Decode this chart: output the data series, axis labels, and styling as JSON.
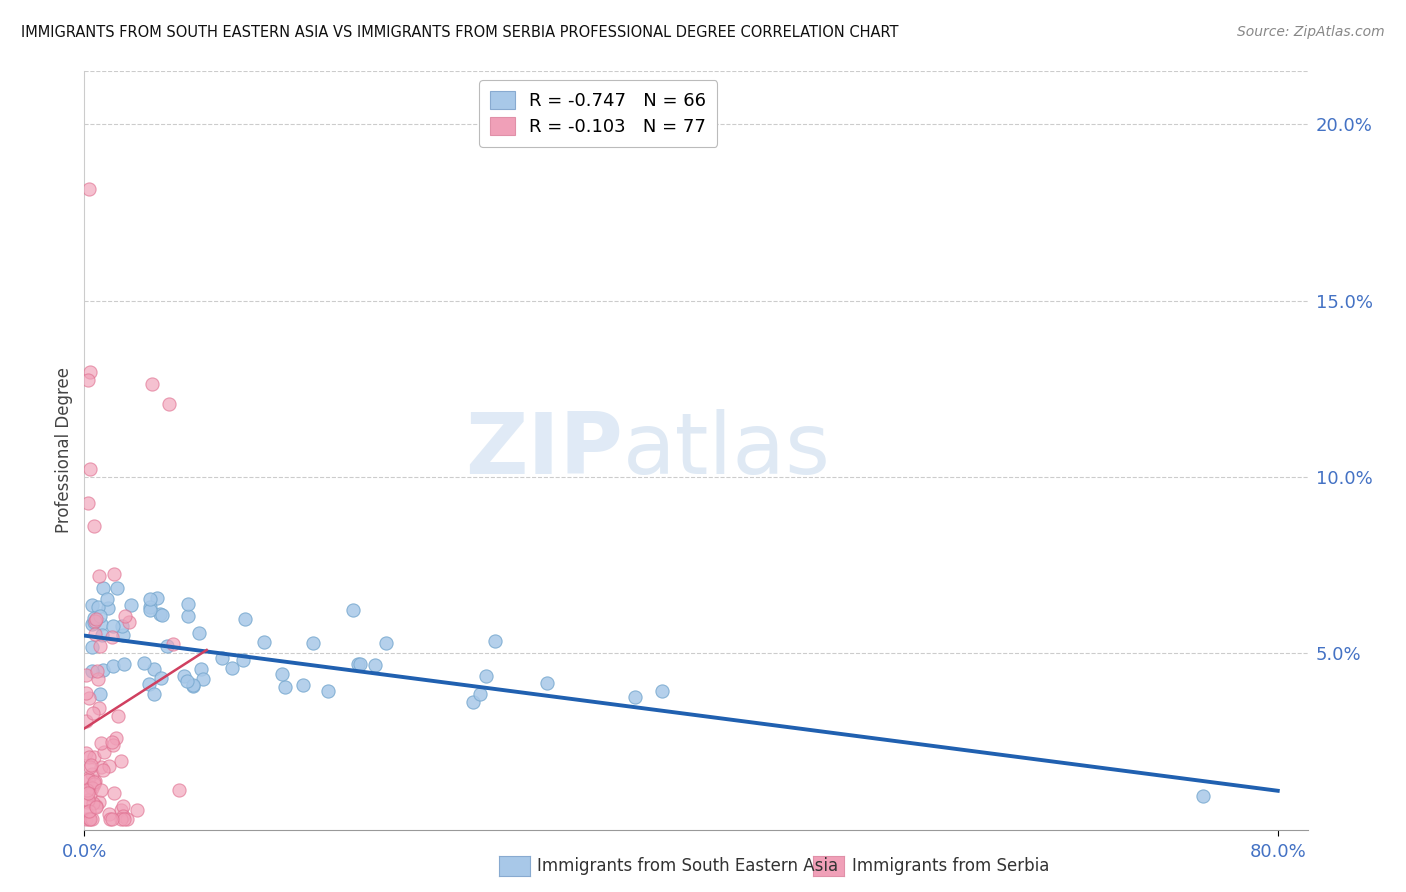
{
  "title": "IMMIGRANTS FROM SOUTH EASTERN ASIA VS IMMIGRANTS FROM SERBIA PROFESSIONAL DEGREE CORRELATION CHART",
  "source": "Source: ZipAtlas.com",
  "ylabel": "Professional Degree",
  "right_yticks": [
    "20.0%",
    "15.0%",
    "10.0%",
    "5.0%"
  ],
  "right_ytick_vals": [
    0.2,
    0.15,
    0.1,
    0.05
  ],
  "legend_blue_label": "R = -0.747   N = 66",
  "legend_pink_label": "R = -0.103   N = 77",
  "blue_scatter_color": "#a8c8e8",
  "blue_scatter_edge": "#7aaad0",
  "pink_scatter_color": "#f0a0b8",
  "pink_scatter_edge": "#e07090",
  "blue_line_color": "#2060b0",
  "pink_line_color": "#d04060",
  "pink_line_style": "solid",
  "watermark_zip_color": "#c8dff0",
  "watermark_atlas_color": "#b8d0e8",
  "xmin": 0.0,
  "xmax": 0.82,
  "ymin": 0.0,
  "ymax": 0.215,
  "legend_blue_patch": "#a8c8e8",
  "legend_pink_patch": "#f0a0b8",
  "bottom_label_blue": "Immigrants from South Eastern Asia",
  "bottom_label_pink": "Immigrants from Serbia",
  "blue_seed": 101,
  "pink_seed": 202
}
